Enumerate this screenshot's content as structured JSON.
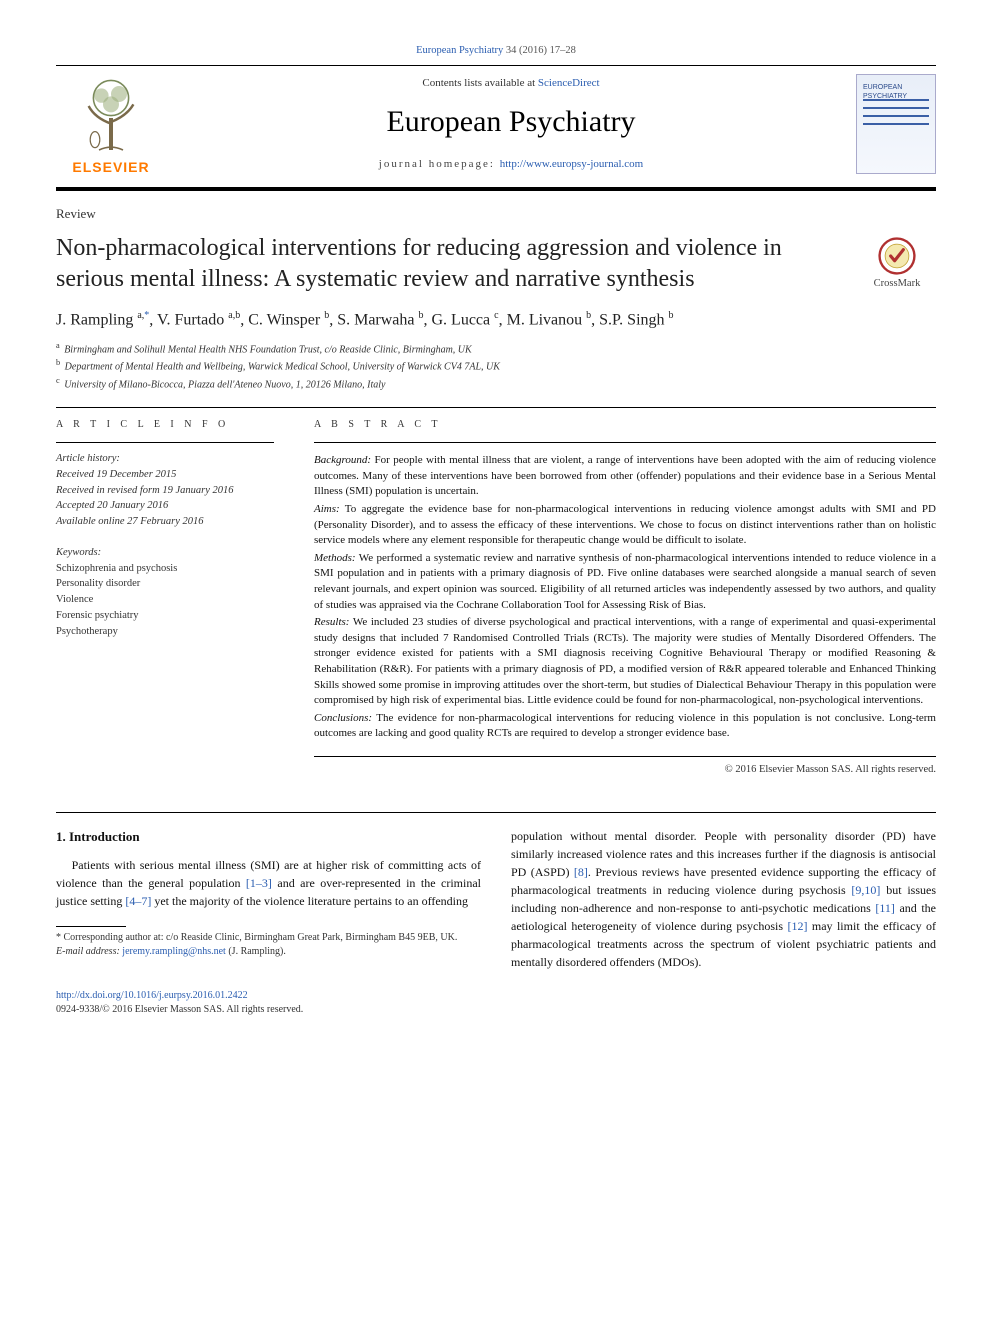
{
  "masthead": {
    "top_link_journal": "European Psychiatry",
    "top_link_pages": " 34 (2016) 17–28",
    "contents_prefix": "Contents lists available at ",
    "contents_link": "ScienceDirect",
    "journal_title": "European Psychiatry",
    "homepage_prefix": "journal homepage: ",
    "homepage_url": "http://www.europsy-journal.com",
    "publisher_logo_text": "ELSEVIER",
    "cover_title": "EUROPEAN PSYCHIATRY"
  },
  "article": {
    "type": "Review",
    "title": "Non-pharmacological interventions for reducing aggression and violence in serious mental illness: A systematic review and narrative synthesis",
    "crossmark_label": "CrossMark",
    "authors_html": "J. Rampling <sup>a,</sup><a href=\"#\">*</a>, V. Furtado <sup>a,b</sup>, C. Winsper <sup>b</sup>, S. Marwaha <sup>b</sup>, G. Lucca <sup>c</sup>, M. Livanou <sup>b</sup>, S.P. Singh <sup>b</sup>",
    "affiliations": [
      {
        "sup": "a",
        "text": "Birmingham and Solihull Mental Health NHS Foundation Trust, c/o Reaside Clinic, Birmingham, UK"
      },
      {
        "sup": "b",
        "text": "Department of Mental Health and Wellbeing, Warwick Medical School, University of Warwick CV4 7AL, UK"
      },
      {
        "sup": "c",
        "text": "University of Milano-Bicocca, Piazza dell'Ateneo Nuovo, 1, 20126 Milano, Italy"
      }
    ]
  },
  "info": {
    "article_info_label": "A R T I C L E   I N F O",
    "abstract_label": "A B S T R A C T",
    "history_header": "Article history:",
    "history_lines": [
      "Received 19 December 2015",
      "Received in revised form 19 January 2016",
      "Accepted 20 January 2016",
      "Available online 27 February 2016"
    ],
    "keywords_header": "Keywords:",
    "keywords": [
      "Schizophrenia and psychosis",
      "Personality disorder",
      "Violence",
      "Forensic psychiatry",
      "Psychotherapy"
    ]
  },
  "abstract": {
    "segments": [
      {
        "label": "Background:",
        "text": " For people with mental illness that are violent, a range of interventions have been adopted with the aim of reducing violence outcomes. Many of these interventions have been borrowed from other (offender) populations and their evidence base in a Serious Mental Illness (SMI) population is uncertain."
      },
      {
        "label": "Aims:",
        "text": " To aggregate the evidence base for non-pharmacological interventions in reducing violence amongst adults with SMI and PD (Personality Disorder), and to assess the efficacy of these interventions. We chose to focus on distinct interventions rather than on holistic service models where any element responsible for therapeutic change would be difficult to isolate."
      },
      {
        "label": "Methods:",
        "text": " We performed a systematic review and narrative synthesis of non-pharmacological interventions intended to reduce violence in a SMI population and in patients with a primary diagnosis of PD. Five online databases were searched alongside a manual search of seven relevant journals, and expert opinion was sourced. Eligibility of all returned articles was independently assessed by two authors, and quality of studies was appraised via the Cochrane Collaboration Tool for Assessing Risk of Bias."
      },
      {
        "label": "Results:",
        "text": " We included 23 studies of diverse psychological and practical interventions, with a range of experimental and quasi-experimental study designs that included 7 Randomised Controlled Trials (RCTs). The majority were studies of Mentally Disordered Offenders. The stronger evidence existed for patients with a SMI diagnosis receiving Cognitive Behavioural Therapy or modified Reasoning & Rehabilitation (R&R). For patients with a primary diagnosis of PD, a modified version of R&R appeared tolerable and Enhanced Thinking Skills showed some promise in improving attitudes over the short-term, but studies of Dialectical Behaviour Therapy in this population were compromised by high risk of experimental bias. Little evidence could be found for non-pharmacological, non-psychological interventions."
      },
      {
        "label": "Conclusions:",
        "text": " The evidence for non-pharmacological interventions for reducing violence in this population is not conclusive. Long-term outcomes are lacking and good quality RCTs are required to develop a stronger evidence base."
      }
    ],
    "copyright": "© 2016 Elsevier Masson SAS. All rights reserved."
  },
  "body": {
    "heading": "1. Introduction",
    "col1_para": "Patients with serious mental illness (SMI) are at higher risk of committing acts of violence than the general population ",
    "col1_ref1": "[1–3]",
    "col1_para_b": " and are over-represented in the criminal justice setting ",
    "col1_ref2": "[4–7]",
    "col1_para_c": " yet the majority of the violence literature pertains to an offending",
    "col2_para": "population without mental disorder. People with personality disorder (PD) have similarly increased violence rates and this increases further if the diagnosis is antisocial PD (ASPD) ",
    "col2_ref1": "[8]",
    "col2_para_b": ". Previous reviews have presented evidence supporting the efficacy of pharmacological treatments in reducing violence during psychosis ",
    "col2_ref2": "[9,10]",
    "col2_para_c": " but issues including non-adherence and non-response to anti-psychotic medications ",
    "col2_ref3": "[11]",
    "col2_para_d": " and the aetiological heterogeneity of violence during psychosis ",
    "col2_ref4": "[12]",
    "col2_para_e": " may limit the efficacy of pharmacological treatments across the spectrum of violent psychiatric patients and mentally disordered offenders (MDOs)."
  },
  "footnotes": {
    "corr": "* Corresponding author at: c/o Reaside Clinic, Birmingham Great Park, Birmingham B45 9EB, UK.",
    "email_label": "E-mail address: ",
    "email": "jeremy.rampling@nhs.net",
    "email_suffix": " (J. Rampling)."
  },
  "doi": {
    "url": "http://dx.doi.org/10.1016/j.eurpsy.2016.01.2422",
    "issn_line": "0924-9338/© 2016 Elsevier Masson SAS. All rights reserved."
  },
  "colors": {
    "link": "#2a5db0",
    "elsevier_orange": "#ff7a00",
    "rule": "#000000",
    "text": "#111111"
  }
}
